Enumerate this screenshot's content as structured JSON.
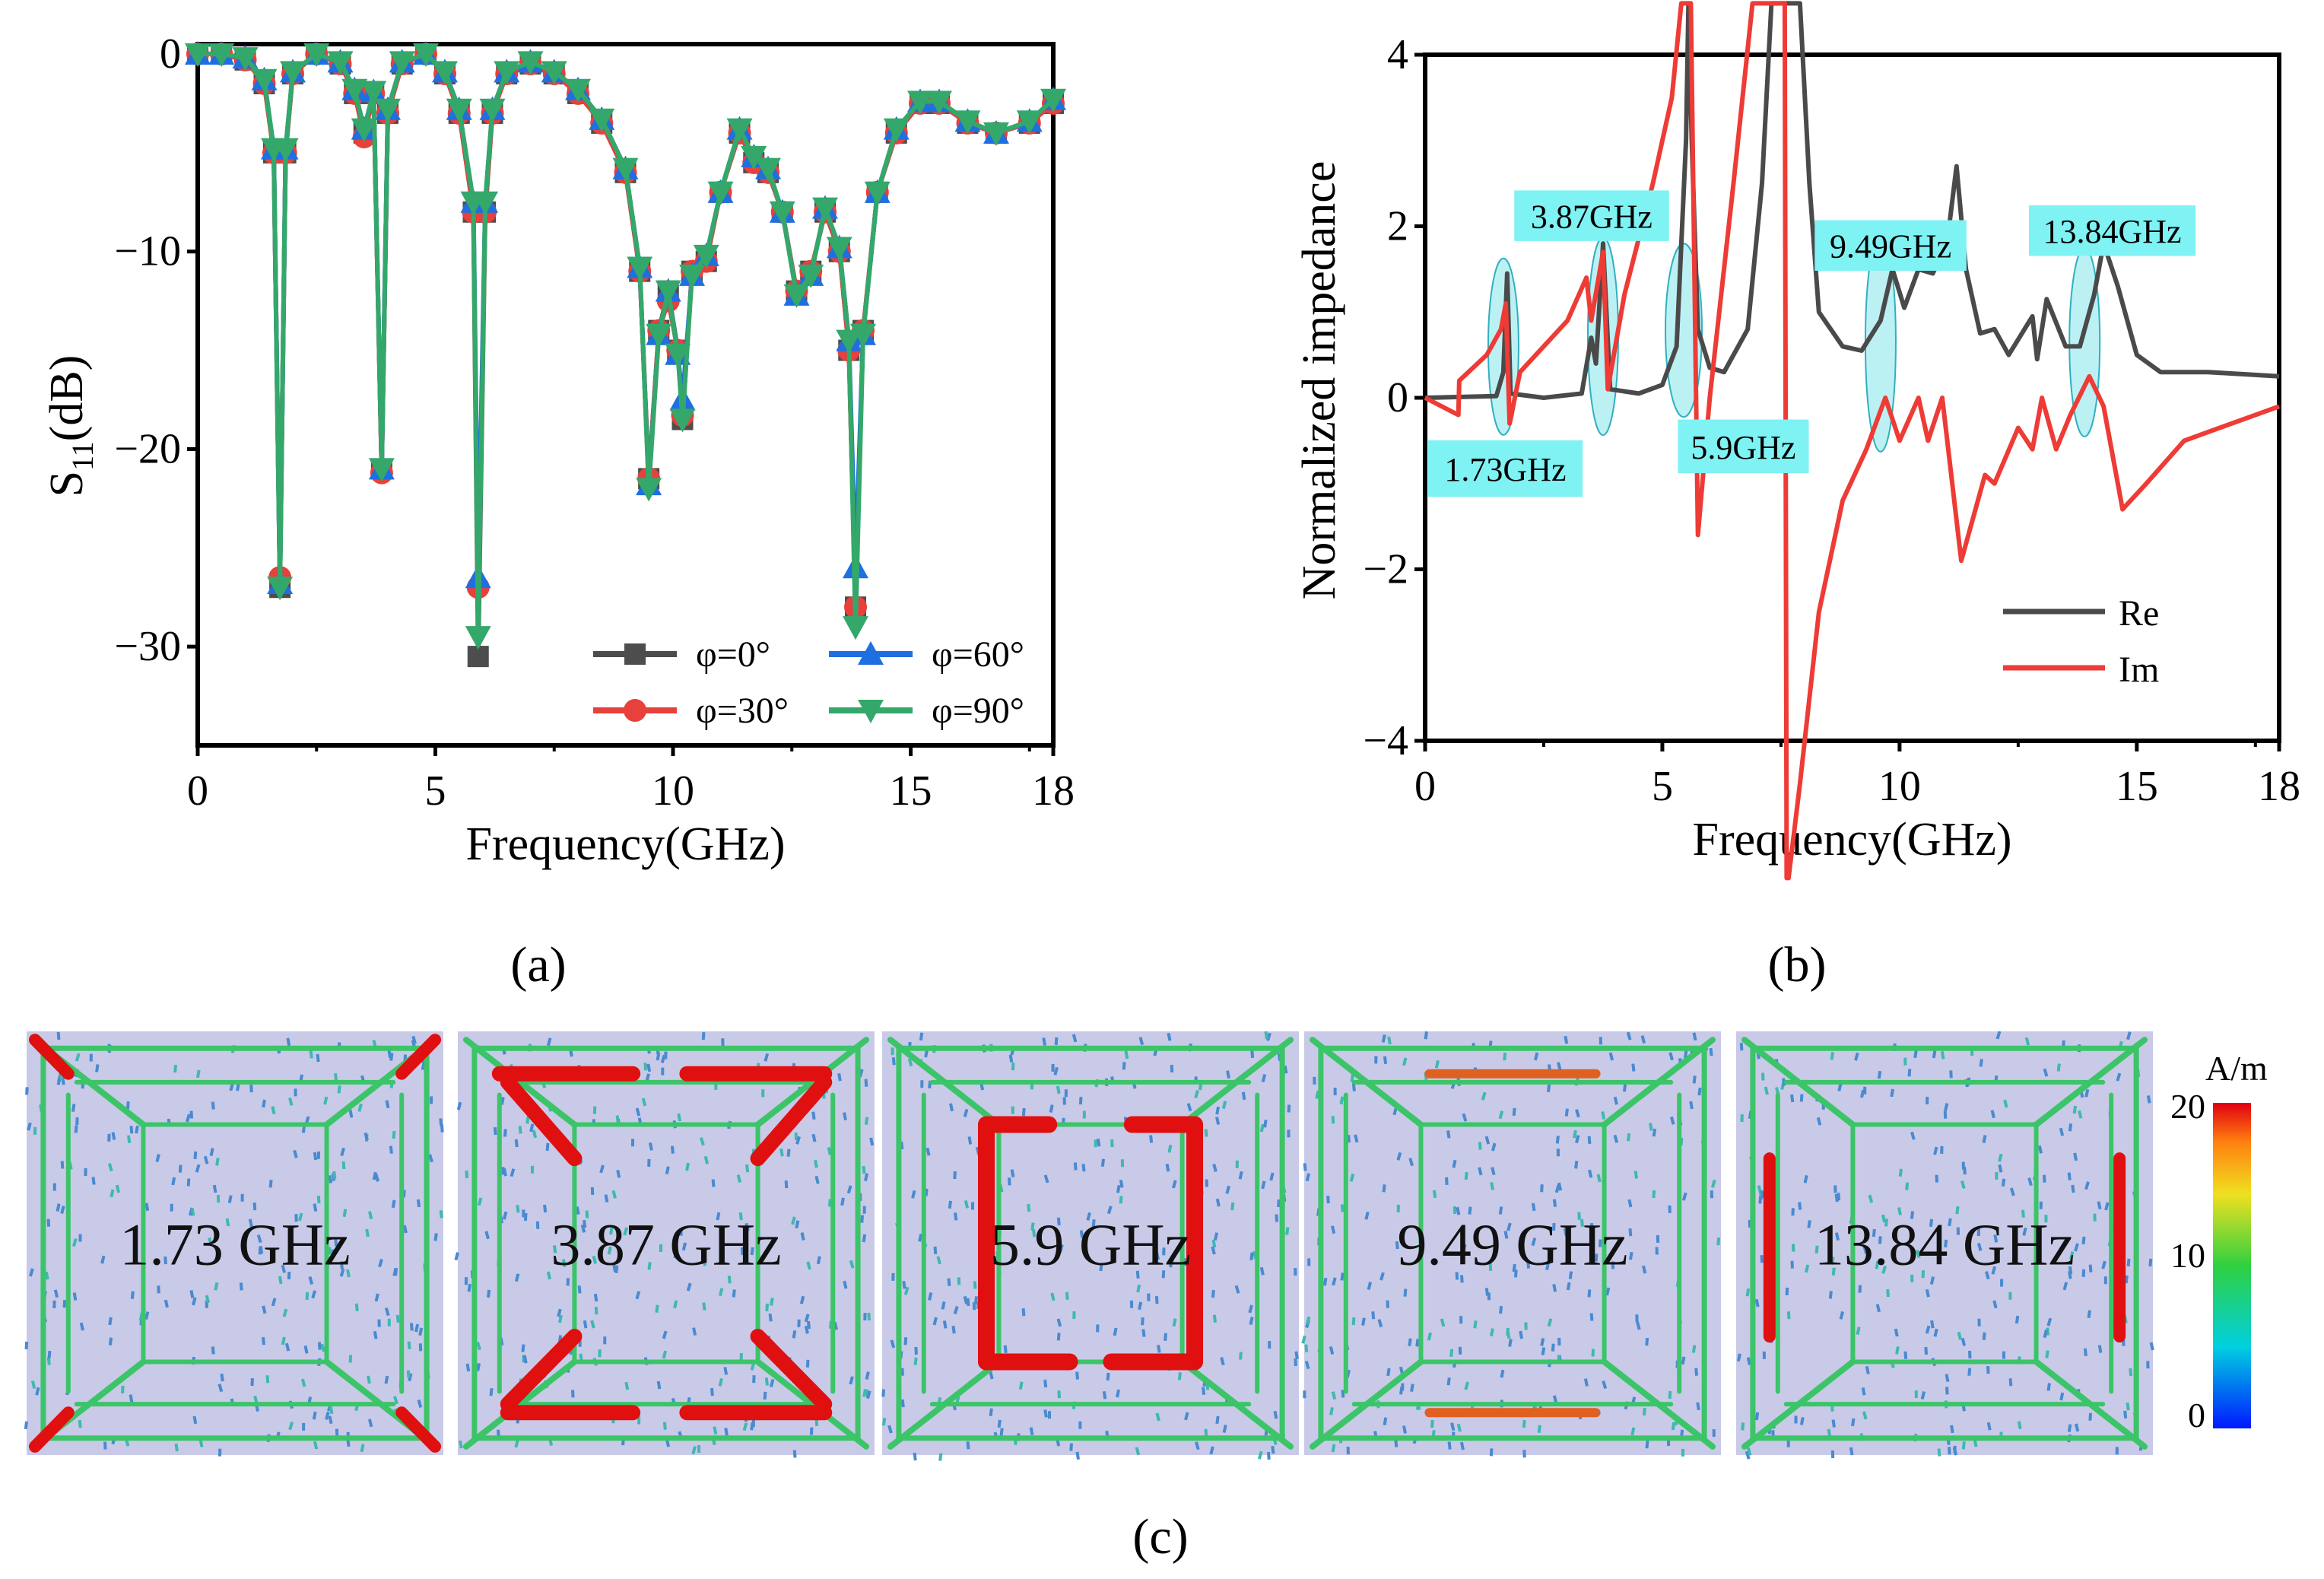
{
  "chart_data": [
    {
      "panel": "(a)",
      "type": "line",
      "xlabel": "Frequency(GHz)",
      "ylabel_main": "S",
      "ylabel_sub": "11",
      "ylabel_unit": "(dB)",
      "xlim": [
        0,
        18
      ],
      "ylim": [
        -35,
        0.5
      ],
      "xticks": [
        0,
        5,
        10,
        15,
        18
      ],
      "yticks": [
        0,
        -10,
        -20,
        -30
      ],
      "ytick_labels": [
        "0",
        "−10",
        "−20",
        "−30"
      ],
      "legend_position": "bottom-right",
      "x": [
        0,
        0.5,
        1,
        1.4,
        1.6,
        1.73,
        1.85,
        2,
        2.5,
        3,
        3.3,
        3.5,
        3.7,
        3.87,
        4,
        4.3,
        4.8,
        5.2,
        5.5,
        5.8,
        5.9,
        6.05,
        6.2,
        6.5,
        7,
        7.5,
        8,
        8.5,
        9,
        9.3,
        9.49,
        9.7,
        9.9,
        10.1,
        10.2,
        10.4,
        10.7,
        11,
        11.4,
        11.7,
        12,
        12.3,
        12.6,
        12.9,
        13.2,
        13.5,
        13.7,
        13.84,
        14,
        14.3,
        14.7,
        15.2,
        15.6,
        16.2,
        16.8,
        17.5,
        18
      ],
      "series": [
        {
          "name": "φ=0°",
          "color": "#4d4d4d",
          "marker": "square",
          "values": [
            0,
            0,
            -0.3,
            -1.5,
            -5,
            -27,
            -5,
            -1,
            0,
            -0.5,
            -2,
            -4,
            -2,
            -21,
            -3,
            -0.5,
            0,
            -1,
            -3,
            -8,
            -30.5,
            -8,
            -3,
            -1,
            -0.5,
            -1,
            -2,
            -3.5,
            -6,
            -11,
            -21.5,
            -14,
            -12,
            -15,
            -18.5,
            -11,
            -10.5,
            -7,
            -4,
            -5.5,
            -6,
            -8,
            -12,
            -11,
            -8,
            -10,
            -15,
            -28,
            -14,
            -7,
            -4,
            -2.5,
            -2.5,
            -3.5,
            -4,
            -3.5,
            -2.5
          ]
        },
        {
          "name": "φ=30°",
          "color": "#e8403a",
          "marker": "circle",
          "values": [
            0,
            0,
            -0.3,
            -1.5,
            -5,
            -26.5,
            -5,
            -1,
            0,
            -0.5,
            -2,
            -4.2,
            -2,
            -21.2,
            -3,
            -0.5,
            0,
            -1,
            -3,
            -8,
            -27,
            -8,
            -3,
            -1,
            -0.5,
            -1,
            -2,
            -3.5,
            -6,
            -11,
            -21.5,
            -14,
            -12.5,
            -15,
            -18.3,
            -11,
            -10.5,
            -7,
            -4,
            -5.5,
            -6,
            -8,
            -12,
            -11,
            -8,
            -10,
            -15,
            -28,
            -14,
            -7,
            -4,
            -2.5,
            -2.5,
            -3.5,
            -4,
            -3.5,
            -2.5
          ]
        },
        {
          "name": "φ=60°",
          "color": "#1f6fe0",
          "marker": "triangle-up",
          "values": [
            0,
            0,
            -0.2,
            -1.3,
            -4.8,
            -26.8,
            -4.8,
            -0.9,
            0,
            -0.4,
            -1.8,
            -3.8,
            -1.9,
            -21,
            -2.8,
            -0.4,
            0,
            -0.9,
            -2.8,
            -7.5,
            -26.5,
            -7.5,
            -2.8,
            -0.9,
            -0.4,
            -0.9,
            -1.8,
            -3.3,
            -5.8,
            -10.8,
            -21.8,
            -14.2,
            -12,
            -15.2,
            -17.5,
            -11.2,
            -10.2,
            -7,
            -3.8,
            -5.2,
            -5.8,
            -8,
            -12.2,
            -11.2,
            -7.8,
            -9.8,
            -14.5,
            -26,
            -14.2,
            -7,
            -3.8,
            -2.4,
            -2.4,
            -3.4,
            -4,
            -3.4,
            -2.3
          ]
        },
        {
          "name": "φ=90°",
          "color": "#34a86a",
          "marker": "triangle-down",
          "values": [
            0,
            0,
            -0.2,
            -1.3,
            -4.8,
            -27,
            -4.8,
            -0.9,
            0,
            -0.4,
            -1.8,
            -3.8,
            -1.9,
            -21,
            -2.8,
            -0.4,
            0,
            -0.9,
            -2.8,
            -7.5,
            -29.5,
            -7.5,
            -2.8,
            -0.9,
            -0.4,
            -0.9,
            -1.8,
            -3.3,
            -5.8,
            -10.8,
            -22,
            -14.2,
            -12,
            -15.2,
            -18.5,
            -11.2,
            -10.2,
            -7,
            -3.8,
            -5.2,
            -5.8,
            -8,
            -12.2,
            -11.2,
            -7.8,
            -9.8,
            -14.5,
            -29,
            -14.2,
            -7,
            -3.8,
            -2.4,
            -2.4,
            -3.4,
            -4,
            -3.4,
            -2.3
          ]
        }
      ]
    },
    {
      "panel": "(b)",
      "type": "line",
      "xlabel": "Frequency(GHz)",
      "ylabel": "Normalized impedance",
      "xlim": [
        0,
        18
      ],
      "ylim": [
        -4,
        4
      ],
      "xticks": [
        0,
        5,
        10,
        15,
        18
      ],
      "yticks": [
        4,
        2,
        0,
        -2,
        -4
      ],
      "ytick_labels": [
        "4",
        "2",
        "0",
        "−2",
        "−4"
      ],
      "legend_position": "bottom-right",
      "series": [
        {
          "name": "Re",
          "color": "#4a4a4a",
          "x": [
            0,
            1.5,
            1.65,
            1.73,
            1.8,
            2.5,
            3.3,
            3.5,
            3.6,
            3.75,
            3.9,
            4.5,
            5,
            5.3,
            5.5,
            5.55,
            5.62,
            5.75,
            6,
            6.3,
            6.8,
            7.1,
            7.3,
            7.45,
            7.9,
            8.1,
            8.3,
            8.8,
            9.2,
            9.6,
            9.85,
            10.1,
            10.4,
            10.7,
            11,
            11.2,
            11.4,
            11.7,
            12,
            12.3,
            12.8,
            12.9,
            13.1,
            13.5,
            13.8,
            14.1,
            14.3,
            14.6,
            15,
            15.5,
            16.5,
            18
          ],
          "y": [
            0,
            0.02,
            0.3,
            1.45,
            0.05,
            0,
            0.05,
            0.7,
            0.4,
            1.8,
            0.1,
            0.05,
            0.15,
            0.6,
            3,
            4.6,
            3,
            0.8,
            0.35,
            0.3,
            0.8,
            2.5,
            4.6,
            4.6,
            4.6,
            2.5,
            1.0,
            0.6,
            0.55,
            0.9,
            1.5,
            1.05,
            1.5,
            1.45,
            1.8,
            2.7,
            1.5,
            0.75,
            0.8,
            0.5,
            0.95,
            0.45,
            1.15,
            0.6,
            0.6,
            1.2,
            1.8,
            1.3,
            0.5,
            0.3,
            0.3,
            0.25
          ]
        },
        {
          "name": "Im",
          "color": "#ee3b36",
          "x": [
            0,
            0.7,
            0.72,
            1.3,
            1.6,
            1.7,
            1.78,
            2,
            3,
            3.4,
            3.5,
            3.75,
            3.85,
            4.2,
            4.8,
            5.2,
            5.4,
            5.5,
            5.6,
            5.75,
            6,
            6.5,
            6.9,
            7.2,
            7.58,
            7.62,
            7.66,
            7.9,
            8.3,
            8.8,
            9.3,
            9.7,
            10,
            10.4,
            10.6,
            10.9,
            11.3,
            11.8,
            12,
            12.5,
            12.8,
            13,
            13.3,
            13.6,
            14,
            14.3,
            14.7,
            15.2,
            16,
            17,
            18
          ],
          "y": [
            0,
            -0.2,
            0.2,
            0.5,
            0.8,
            1.1,
            -0.3,
            0.3,
            0.9,
            1.4,
            0.9,
            1.7,
            0.1,
            1.2,
            2.5,
            3.5,
            4.6,
            4.6,
            4.6,
            -1.6,
            0,
            2.5,
            4.6,
            4.6,
            4.6,
            -5.6,
            -5.6,
            -4.5,
            -2.5,
            -1.2,
            -0.6,
            0,
            -0.5,
            0,
            -0.5,
            0,
            -1.9,
            -0.9,
            -1,
            -0.35,
            -0.6,
            0,
            -0.6,
            -0.2,
            0.25,
            -0.1,
            -1.3,
            -1,
            -0.5,
            -0.3,
            -0.1
          ]
        }
      ],
      "annotations": [
        {
          "label": "1.73GHz",
          "x": 1.73
        },
        {
          "label": "3.87GHz",
          "x": 3.87
        },
        {
          "label": "5.9GHz",
          "x": 5.9
        },
        {
          "label": "9.49GHz",
          "x": 9.49
        },
        {
          "label": "13.84GHz",
          "x": 13.84
        }
      ]
    }
  ],
  "captions": {
    "a": "(a)",
    "b": "(b)",
    "c": "(c)"
  },
  "field_maps": [
    {
      "label": "1.73 GHz"
    },
    {
      "label": "3.87 GHz"
    },
    {
      "label": "5.9 GHz"
    },
    {
      "label": "9.49 GHz"
    },
    {
      "label": "13.84 GHz"
    }
  ],
  "colorbar": {
    "unit": "A/m",
    "ticks": [
      "20",
      "10",
      "0"
    ],
    "range": [
      0,
      20
    ]
  }
}
